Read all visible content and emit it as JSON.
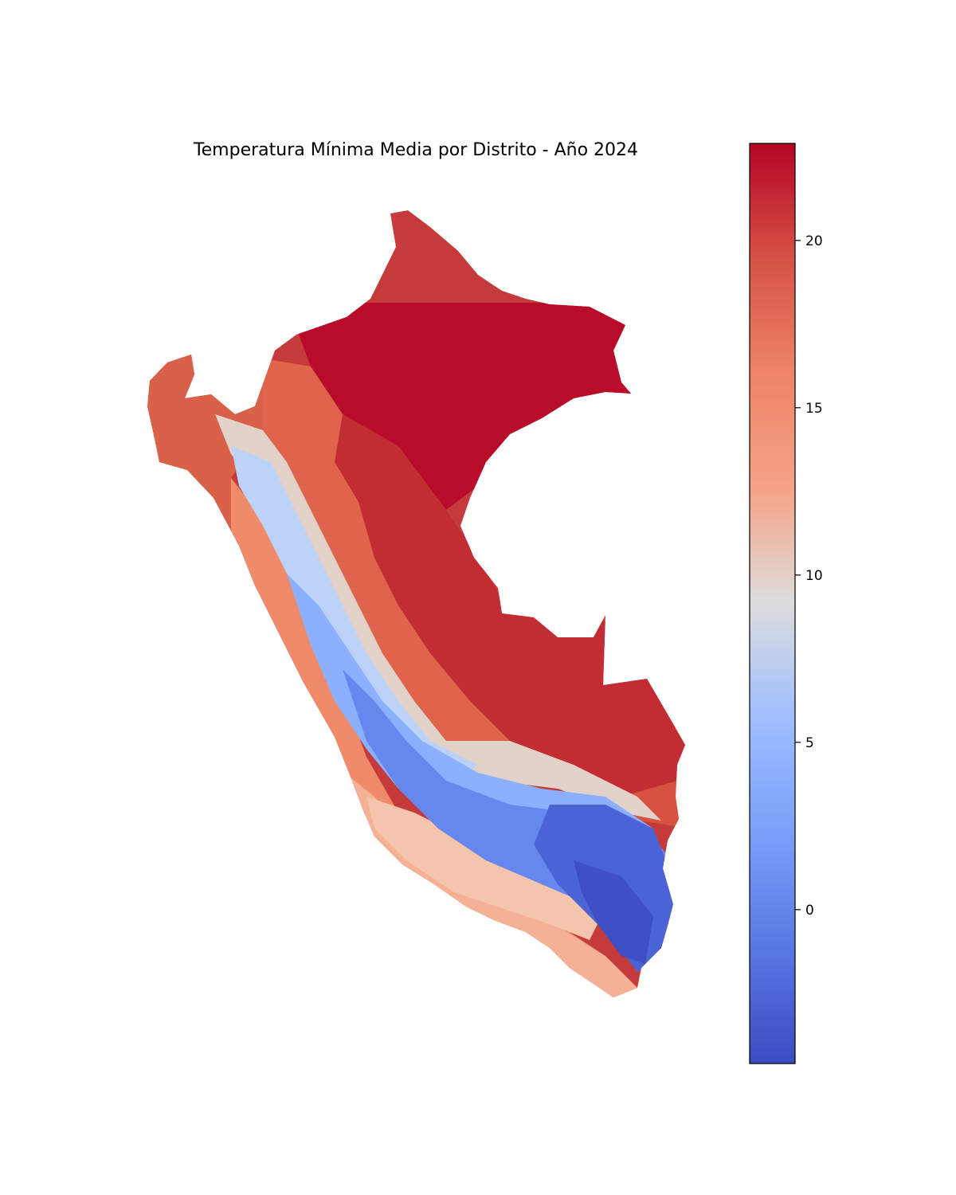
{
  "title": "Temperatura Mínima Media por Distrito - Año 2024",
  "colorbar": {
    "colormap": "coolwarm",
    "min": -4.6,
    "max": 22.9,
    "ticks": [
      {
        "value": 0,
        "label": "0"
      },
      {
        "value": 5,
        "label": "5"
      },
      {
        "value": 10,
        "label": "10"
      },
      {
        "value": 15,
        "label": "15"
      },
      {
        "value": 20,
        "label": "20"
      }
    ]
  },
  "colors": {
    "cold": "#3b4cc0",
    "neutral": "#dddddd",
    "warm": "#b40426"
  }
}
